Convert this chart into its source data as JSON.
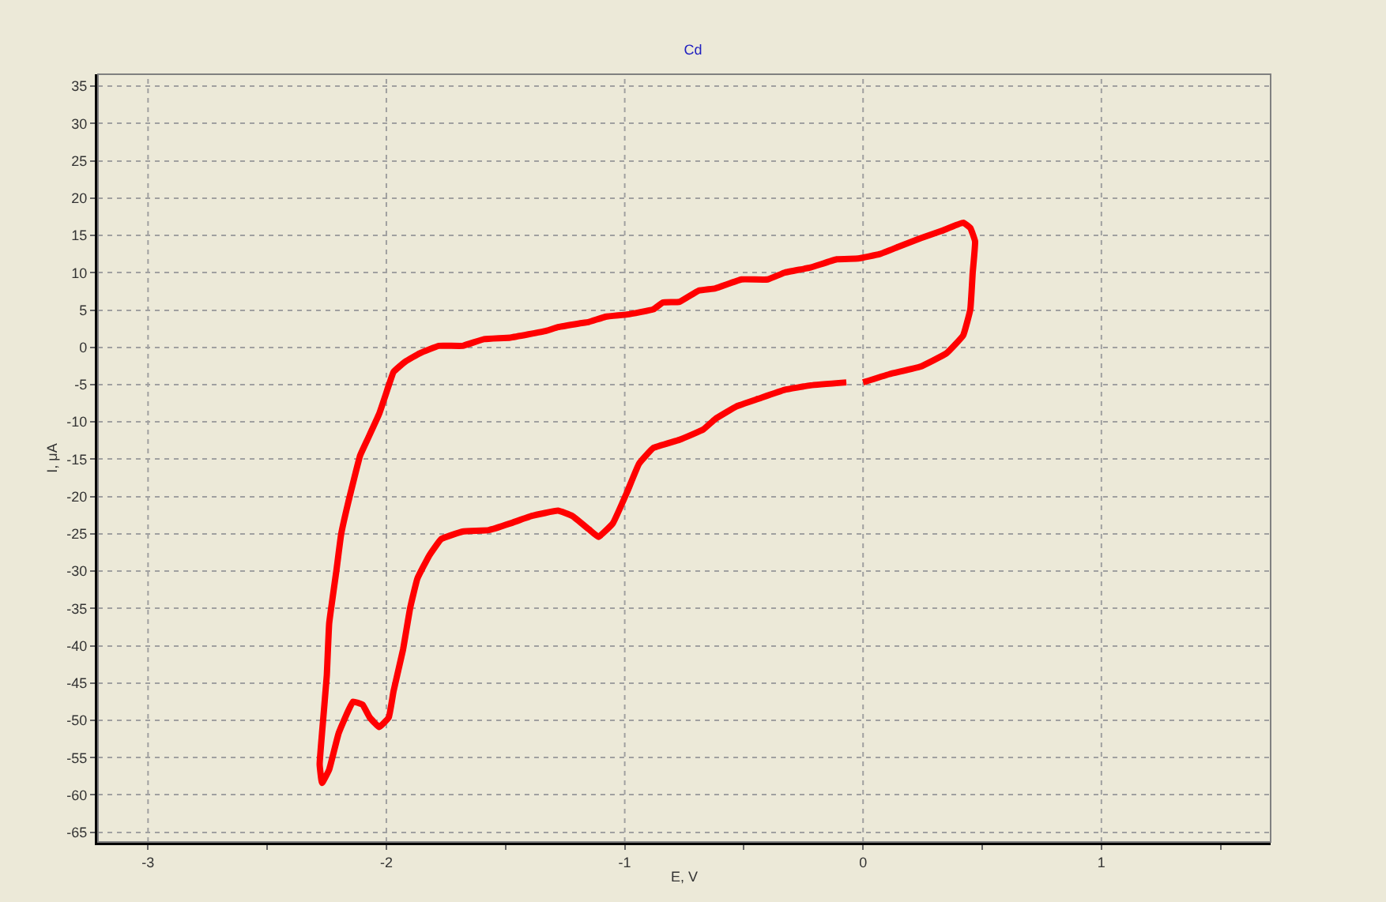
{
  "chart_data": {
    "type": "line",
    "title": "Cd",
    "xlabel": "E, V",
    "ylabel": "I, μA",
    "xlim": [
      -3.21,
      1.71
    ],
    "ylim": [
      -66.3,
      36.6
    ],
    "xticks": [
      -3,
      {
        "value": -2.5,
        "label": null
      },
      -2,
      {
        "value": -1.5,
        "label": null
      },
      -1,
      {
        "value": -0.5,
        "label": null
      },
      0,
      {
        "value": 0.5,
        "label": null
      },
      1,
      {
        "value": 1.5,
        "label": null
      }
    ],
    "yticks": [
      -65,
      -60,
      -55,
      -50,
      -45,
      -40,
      -35,
      -30,
      -25,
      -20,
      -15,
      -10,
      -5,
      0,
      5,
      10,
      15,
      20,
      25,
      30,
      35
    ],
    "grid": true,
    "marker": "none",
    "line_style": "solid",
    "series": [
      {
        "color": "#ff0000",
        "x": [
          0.0,
          0.11,
          0.24,
          0.35,
          0.42,
          0.45,
          0.46,
          0.47,
          0.45,
          0.42,
          0.33,
          0.24,
          0.15,
          0.07,
          -0.02,
          -0.11,
          -0.22,
          -0.33,
          -0.4,
          -0.51,
          -0.62,
          -0.69,
          -0.77,
          -0.84,
          -0.88,
          -0.99,
          -1.08,
          -1.15,
          -1.19,
          -1.28,
          -1.33,
          -1.48,
          -1.59,
          -1.68,
          -1.78,
          -1.86,
          -1.92,
          -1.97,
          -1.99,
          -2.03,
          -2.08,
          -2.11,
          -2.16,
          -2.19,
          -2.21,
          -2.24,
          -2.25,
          -2.27,
          -2.28,
          -2.27,
          -2.24,
          -2.2,
          -2.14,
          -2.1,
          -2.07,
          -2.03,
          -1.99,
          -1.97,
          -1.93,
          -1.9,
          -1.87,
          -1.82,
          -1.77,
          -1.68,
          -1.57,
          -1.48,
          -1.39,
          -1.28,
          -1.22,
          -1.15,
          -1.11,
          -1.05,
          -0.99,
          -0.94,
          -0.88,
          -0.77,
          -0.67,
          -0.62,
          -0.53,
          -0.44,
          -0.33,
          -0.22,
          -0.07
        ],
        "values": [
          -4.7,
          -3.6,
          -2.6,
          -0.8,
          1.6,
          5.1,
          10.0,
          14.2,
          16.0,
          16.7,
          15.6,
          14.6,
          13.5,
          12.5,
          11.9,
          11.8,
          10.7,
          10.0,
          9.1,
          9.1,
          7.9,
          7.6,
          6.1,
          6.0,
          5.1,
          4.4,
          4.1,
          3.4,
          3.2,
          2.7,
          2.2,
          1.3,
          1.1,
          0.2,
          0.2,
          -0.8,
          -1.9,
          -3.3,
          -5.1,
          -8.9,
          -12.4,
          -14.5,
          -20.8,
          -25.1,
          -30.0,
          -37.0,
          -44.0,
          -51.7,
          -55.9,
          -58.4,
          -56.6,
          -51.7,
          -47.5,
          -47.9,
          -49.6,
          -50.9,
          -49.6,
          -46.1,
          -40.5,
          -34.9,
          -31.0,
          -27.9,
          -25.7,
          -24.7,
          -24.5,
          -23.6,
          -22.6,
          -21.9,
          -22.6,
          -24.4,
          -25.4,
          -23.6,
          -19.4,
          -15.6,
          -13.5,
          -12.4,
          -11.0,
          -9.6,
          -7.9,
          -6.9,
          -5.7,
          -5.1,
          -4.7
        ]
      }
    ]
  }
}
